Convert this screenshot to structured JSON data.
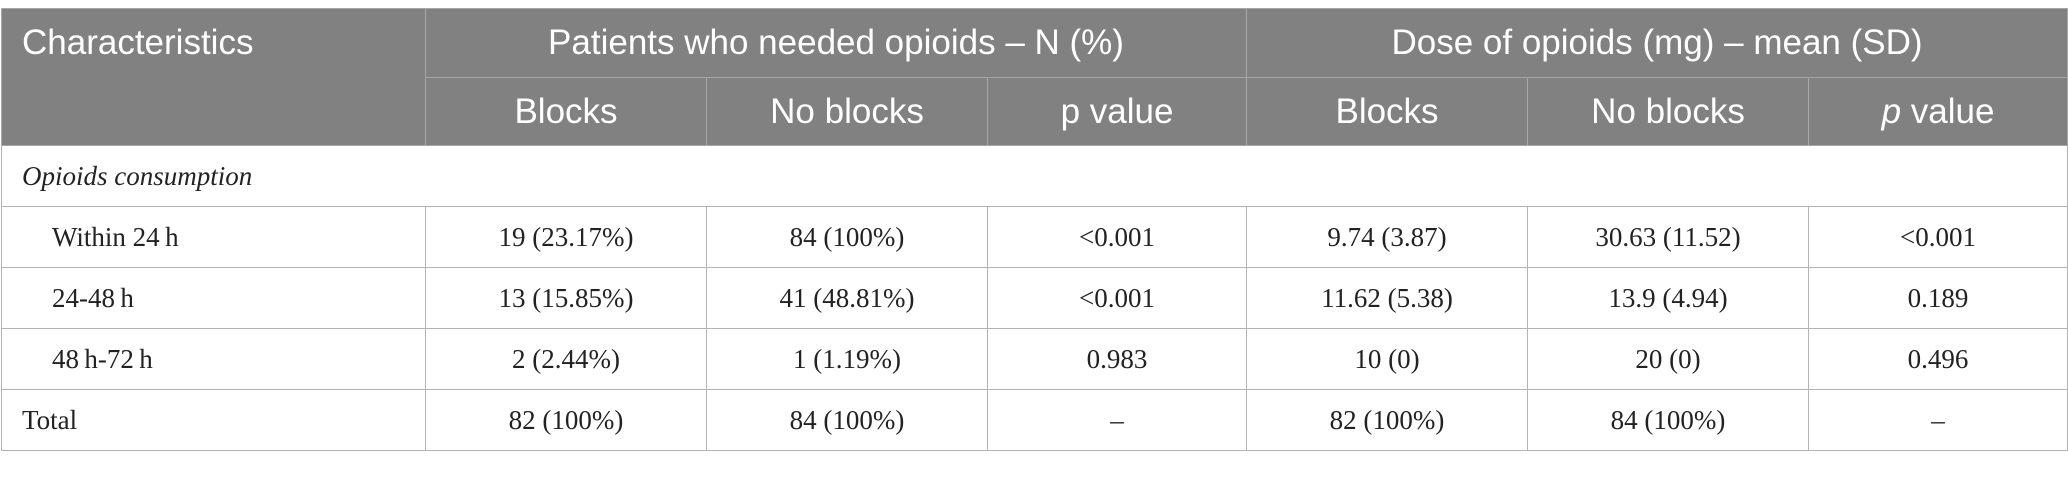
{
  "header": {
    "characteristics": "Characteristics",
    "group1_title": "Patients who needed opioids – N (%)",
    "group2_title": "Dose of opioids (mg) – mean (SD)",
    "group1_sub": [
      "Blocks",
      "No blocks",
      "p value"
    ],
    "group2_sub": [
      "Blocks",
      "No blocks",
      "p",
      " value"
    ]
  },
  "section_label": "Opioids consumption",
  "rows": [
    {
      "label": "Within 24 h",
      "cells": [
        "19 (23.17%)",
        "84 (100%)",
        "<0.001",
        "9.74 (3.87)",
        "30.63 (11.52)",
        "<0.001"
      ]
    },
    {
      "label": "24-48 h",
      "cells": [
        "13 (15.85%)",
        "41 (48.81%)",
        "<0.001",
        "11.62 (5.38)",
        "13.9 (4.94)",
        "0.189"
      ]
    },
    {
      "label": "48 h-72 h",
      "cells": [
        "2 (2.44%)",
        "1 (1.19%)",
        "0.983",
        "10 (0)",
        "20 (0)",
        "0.496"
      ]
    },
    {
      "label": "Total",
      "cells": [
        "82 (100%)",
        "84 (100%)",
        "–",
        "82 (100%)",
        "84 (100%)",
        "–"
      ]
    }
  ],
  "colors": {
    "header_bg": "#808180",
    "header_text": "#ffffff",
    "border": "#b3b3b3"
  }
}
